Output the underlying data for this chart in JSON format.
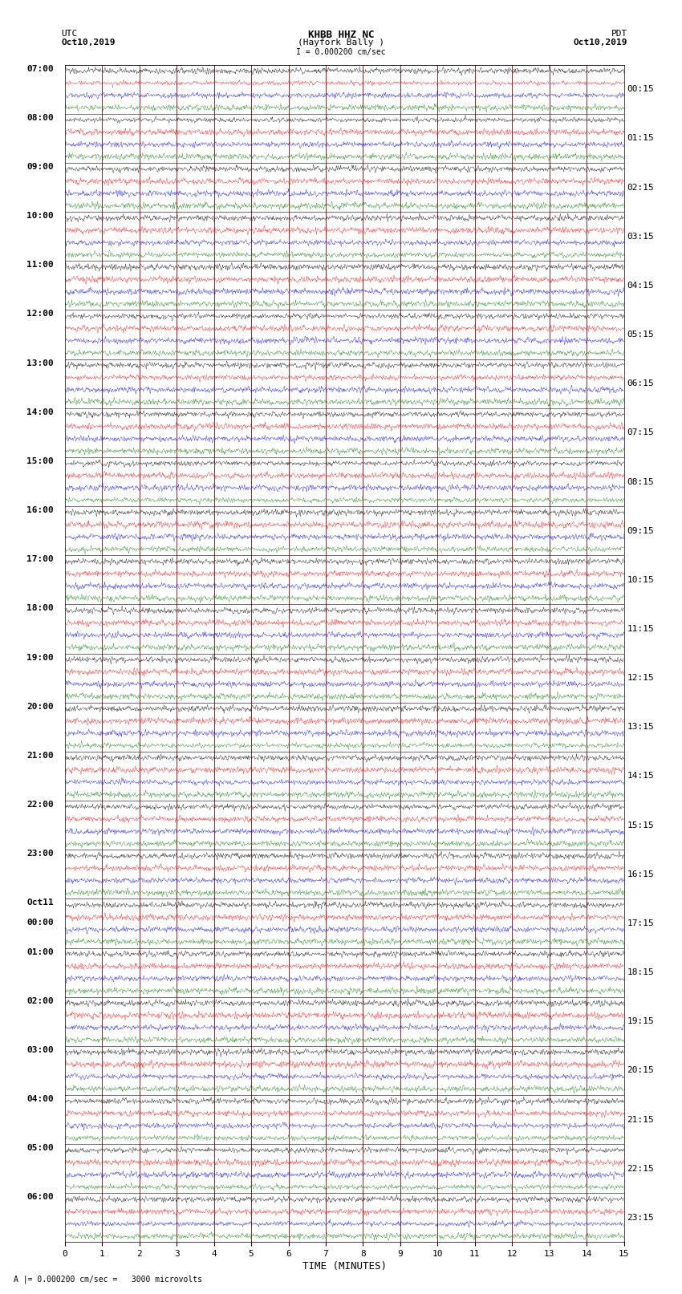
{
  "title_line1": "KHBB HHZ NC",
  "title_line2": "(Hayfork Bally )",
  "title_line3": "I = 0.000200 cm/sec",
  "left_header": "UTC",
  "left_subheader": "Oct10,2019",
  "right_header": "PDT",
  "right_subheader": "Oct10,2019",
  "xlabel": "TIME (MINUTES)",
  "bottom_caption": "A |= 0.000200 cm/sec =   3000 microvolts",
  "x_min": 0,
  "x_max": 15,
  "x_ticks": [
    0,
    1,
    2,
    3,
    4,
    5,
    6,
    7,
    8,
    9,
    10,
    11,
    12,
    13,
    14,
    15
  ],
  "bg_color": "#ffffff",
  "trace_colors": [
    "black",
    "red",
    "blue",
    "green"
  ],
  "left_labels": [
    "07:00",
    "08:00",
    "09:00",
    "10:00",
    "11:00",
    "12:00",
    "13:00",
    "14:00",
    "15:00",
    "16:00",
    "17:00",
    "18:00",
    "19:00",
    "20:00",
    "21:00",
    "22:00",
    "23:00",
    "Oct11",
    "01:00",
    "02:00",
    "03:00",
    "04:00",
    "05:00",
    "06:00"
  ],
  "left_labels2": [
    "",
    "",
    "",
    "",
    "",
    "",
    "",
    "",
    "",
    "",
    "",
    "",
    "",
    "",
    "",
    "",
    "",
    "00:00",
    "",
    "",
    "",
    "",
    "",
    ""
  ],
  "right_labels": [
    "00:15",
    "01:15",
    "02:15",
    "03:15",
    "04:15",
    "05:15",
    "06:15",
    "07:15",
    "08:15",
    "09:15",
    "10:15",
    "11:15",
    "12:15",
    "13:15",
    "14:15",
    "15:15",
    "16:15",
    "17:15",
    "18:15",
    "19:15",
    "20:15",
    "21:15",
    "22:15",
    "23:15"
  ],
  "num_hours": 24,
  "traces_per_hour": 4,
  "trace_amplitude": 0.35,
  "grid_color": "#880000",
  "grid_linewidth": 0.6,
  "font_size_title": 9,
  "font_size_labels": 8,
  "font_size_axis": 8,
  "font_family": "monospace"
}
